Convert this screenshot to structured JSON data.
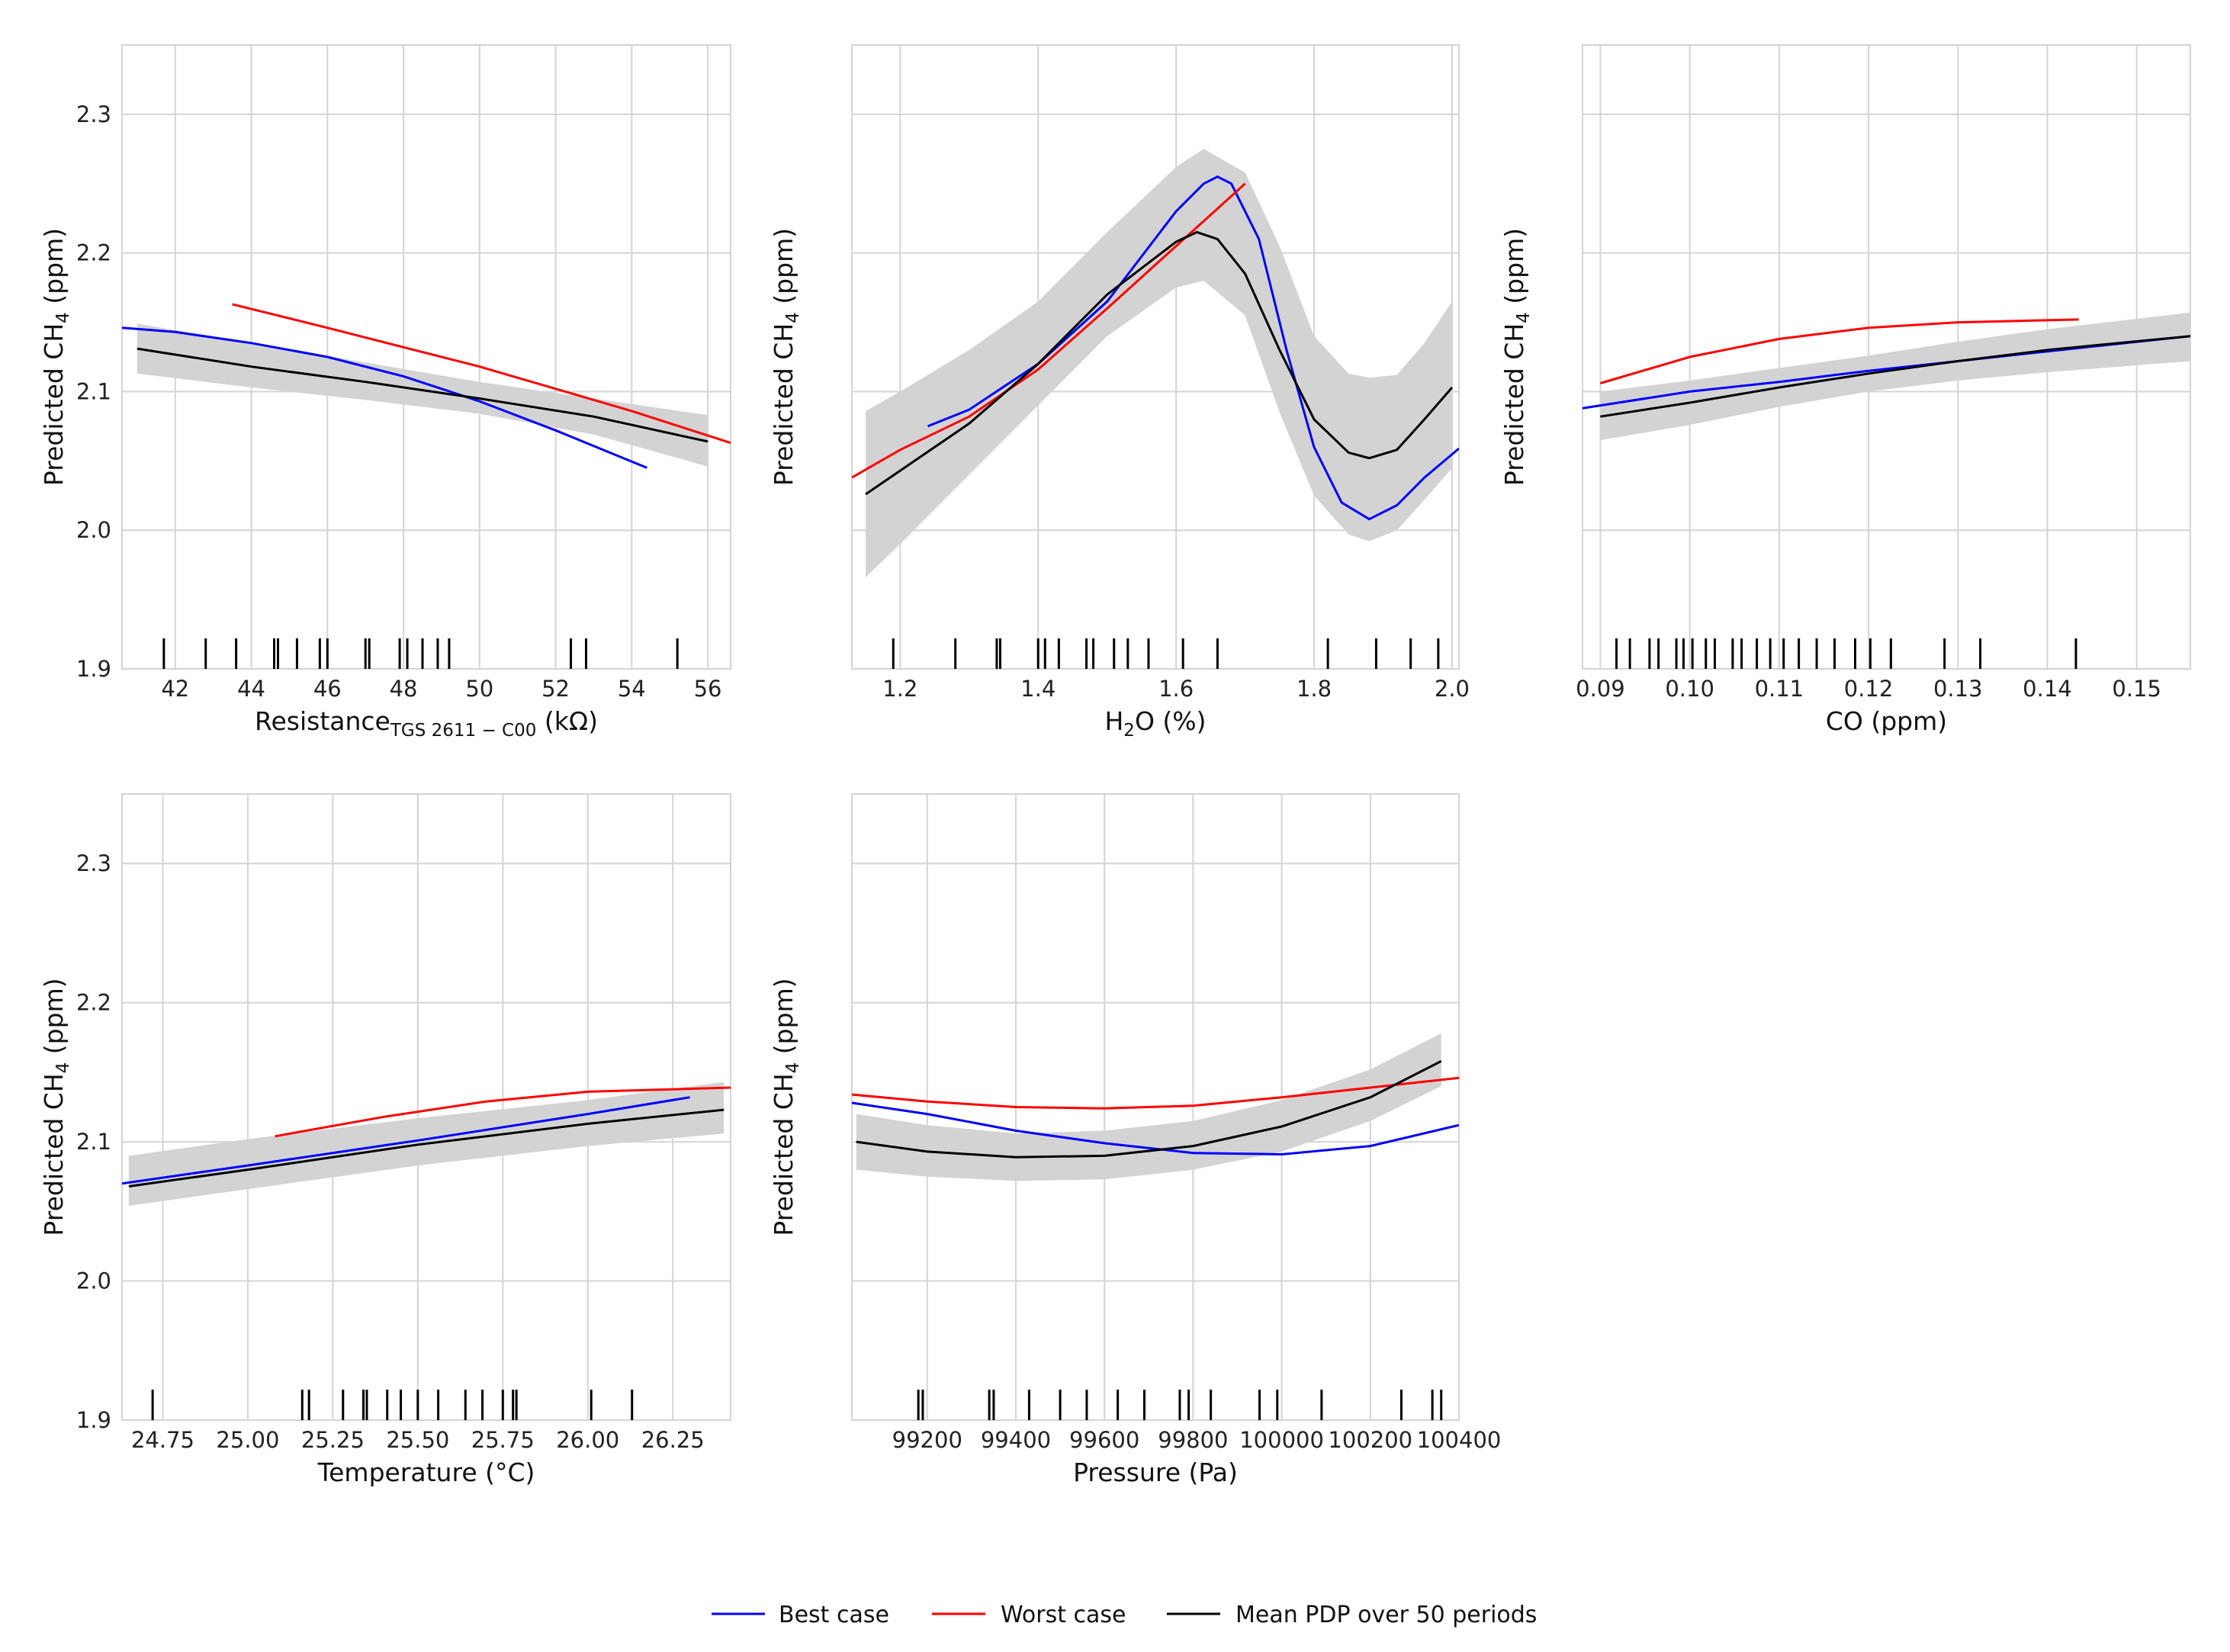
{
  "chart_data": [
    {
      "type": "line",
      "xlabel": "Resistance",
      "xlabel_sub": "TGS 2611 − C00",
      "xlabel_unit": "(kΩ)",
      "ylabel": "Predicted CH",
      "ylabel_sub": "4",
      "ylabel_unit": "(ppm)",
      "xlim": [
        40.6,
        56.6
      ],
      "ylim": [
        1.9,
        2.35
      ],
      "xticks": [
        42,
        44,
        46,
        48,
        50,
        52,
        54,
        56
      ],
      "xtick_labels": [
        "42",
        "44",
        "46",
        "48",
        "50",
        "52",
        "54",
        "56"
      ],
      "yticks": [
        1.9,
        2.0,
        2.1,
        2.2,
        2.3
      ],
      "ytick_labels": [
        "1.9",
        "2.0",
        "2.1",
        "2.2",
        "2.3"
      ],
      "show_ytick_labels": true,
      "rug": [
        41.7,
        42.8,
        43.6,
        44.6,
        44.7,
        45.2,
        45.8,
        46.0,
        47.0,
        47.1,
        47.9,
        48.1,
        48.5,
        48.9,
        49.2,
        52.4,
        52.8,
        55.2
      ],
      "series": [
        {
          "name": "Best case",
          "x": [
            40.6,
            42,
            44,
            46,
            48,
            50,
            52,
            54.4
          ],
          "y": [
            2.146,
            2.143,
            2.135,
            2.125,
            2.111,
            2.093,
            2.072,
            2.045
          ]
        },
        {
          "name": "Worst case",
          "x": [
            43.5,
            46,
            48,
            50,
            52,
            54,
            56.6
          ],
          "y": [
            2.163,
            2.146,
            2.132,
            2.118,
            2.102,
            2.086,
            2.063
          ]
        },
        {
          "name": "Mean PDP over 50 periods",
          "x": [
            41.0,
            44,
            47,
            50,
            53,
            56.0
          ],
          "y": [
            2.131,
            2.118,
            2.107,
            2.095,
            2.082,
            2.064
          ]
        }
      ],
      "band": {
        "x": [
          41.0,
          44,
          47,
          50,
          53,
          56.0
        ],
        "lower": [
          2.113,
          2.103,
          2.094,
          2.084,
          2.069,
          2.046
        ],
        "upper": [
          2.149,
          2.135,
          2.121,
          2.107,
          2.095,
          2.083
        ]
      }
    },
    {
      "type": "line",
      "xlabel": "H",
      "xlabel_sub": "2",
      "xlabel_unit": "O (%)",
      "ylabel": "Predicted CH",
      "ylabel_sub": "4",
      "ylabel_unit": "(ppm)",
      "xlim": [
        1.13,
        2.01
      ],
      "ylim": [
        1.9,
        2.35
      ],
      "xticks": [
        1.2,
        1.4,
        1.6,
        1.8,
        2.0
      ],
      "xtick_labels": [
        "1.2",
        "1.4",
        "1.6",
        "1.8",
        "2.0"
      ],
      "yticks": [
        1.9,
        2.0,
        2.1,
        2.2,
        2.3
      ],
      "ytick_labels": [
        "1.9",
        "2.0",
        "2.1",
        "2.2",
        "2.3"
      ],
      "show_ytick_labels": false,
      "rug": [
        1.19,
        1.28,
        1.34,
        1.345,
        1.4,
        1.41,
        1.43,
        1.47,
        1.48,
        1.51,
        1.53,
        1.56,
        1.61,
        1.66,
        1.82,
        1.89,
        1.94,
        1.98
      ],
      "series": [
        {
          "name": "Best case",
          "x": [
            1.24,
            1.3,
            1.4,
            1.5,
            1.6,
            1.64,
            1.66,
            1.68,
            1.72,
            1.76,
            1.8,
            1.84,
            1.88,
            1.92,
            1.96,
            2.01
          ],
          "y": [
            2.075,
            2.087,
            2.12,
            2.165,
            2.23,
            2.25,
            2.255,
            2.25,
            2.21,
            2.13,
            2.06,
            2.02,
            2.008,
            2.018,
            2.038,
            2.059
          ]
        },
        {
          "name": "Worst case",
          "x": [
            1.13,
            1.2,
            1.3,
            1.4,
            1.5,
            1.6,
            1.7
          ],
          "y": [
            2.038,
            2.058,
            2.082,
            2.116,
            2.16,
            2.205,
            2.25
          ]
        },
        {
          "name": "Mean PDP over 50 periods",
          "x": [
            1.15,
            1.2,
            1.3,
            1.4,
            1.5,
            1.6,
            1.63,
            1.66,
            1.7,
            1.75,
            1.8,
            1.85,
            1.88,
            1.92,
            1.96,
            2.0
          ],
          "y": [
            2.026,
            2.043,
            2.077,
            2.12,
            2.17,
            2.208,
            2.215,
            2.21,
            2.185,
            2.13,
            2.08,
            2.056,
            2.052,
            2.058,
            2.08,
            2.103
          ]
        }
      ],
      "band": {
        "x": [
          1.15,
          1.2,
          1.3,
          1.4,
          1.5,
          1.6,
          1.64,
          1.7,
          1.75,
          1.8,
          1.85,
          1.88,
          1.92,
          1.96,
          2.0
        ],
        "lower": [
          1.966,
          1.99,
          2.04,
          2.09,
          2.14,
          2.175,
          2.18,
          2.155,
          2.085,
          2.025,
          1.997,
          1.992,
          2.0,
          2.022,
          2.045
        ],
        "upper": [
          2.086,
          2.1,
          2.13,
          2.165,
          2.215,
          2.262,
          2.275,
          2.258,
          2.205,
          2.14,
          2.113,
          2.11,
          2.112,
          2.135,
          2.165
        ]
      }
    },
    {
      "type": "line",
      "xlabel": "CO (ppm)",
      "xlabel_sub": "",
      "xlabel_unit": "",
      "ylabel": "Predicted CH",
      "ylabel_sub": "4",
      "ylabel_unit": "(ppm)",
      "xlim": [
        0.088,
        0.156
      ],
      "ylim": [
        1.9,
        2.35
      ],
      "xticks": [
        0.09,
        0.1,
        0.11,
        0.12,
        0.13,
        0.14,
        0.15
      ],
      "xtick_labels": [
        "0.09",
        "0.10",
        "0.11",
        "0.12",
        "0.13",
        "0.14",
        "0.15"
      ],
      "yticks": [
        1.9,
        2.0,
        2.1,
        2.2,
        2.3
      ],
      "ytick_labels": [
        "1.9",
        "2.0",
        "2.1",
        "2.2",
        "2.3"
      ],
      "show_ytick_labels": false,
      "rug": [
        0.0918,
        0.0933,
        0.0955,
        0.0965,
        0.0985,
        0.0993,
        0.1003,
        0.1018,
        0.1028,
        0.1048,
        0.1058,
        0.1075,
        0.109,
        0.1105,
        0.1122,
        0.1142,
        0.1162,
        0.1185,
        0.1202,
        0.1225,
        0.1285,
        0.1325,
        0.1432
      ],
      "series": [
        {
          "name": "Best case",
          "x": [
            0.088,
            0.1,
            0.11,
            0.12,
            0.13,
            0.14,
            0.156
          ],
          "y": [
            2.088,
            2.1,
            2.107,
            2.115,
            2.122,
            2.129,
            2.14
          ]
        },
        {
          "name": "Worst case",
          "x": [
            0.09,
            0.1,
            0.11,
            0.12,
            0.13,
            0.1435
          ],
          "y": [
            2.106,
            2.125,
            2.138,
            2.146,
            2.15,
            2.152
          ]
        },
        {
          "name": "Mean PDP over 50 periods",
          "x": [
            0.09,
            0.1,
            0.11,
            0.12,
            0.13,
            0.14,
            0.156
          ],
          "y": [
            2.082,
            2.092,
            2.103,
            2.113,
            2.122,
            2.13,
            2.14
          ]
        }
      ],
      "band": {
        "x": [
          0.09,
          0.1,
          0.11,
          0.12,
          0.13,
          0.14,
          0.156
        ],
        "lower": [
          2.065,
          2.076,
          2.089,
          2.1,
          2.108,
          2.114,
          2.122
        ],
        "upper": [
          2.1,
          2.108,
          2.117,
          2.126,
          2.136,
          2.145,
          2.157
        ]
      }
    },
    {
      "type": "line",
      "xlabel": "Temperature (",
      "xlabel_sub": "",
      "xlabel_unit": "°C)",
      "ylabel": "Predicted CH",
      "ylabel_sub": "4",
      "ylabel_unit": "(ppm)",
      "xlim": [
        24.63,
        26.42
      ],
      "ylim": [
        1.9,
        2.35
      ],
      "xticks": [
        24.75,
        25.0,
        25.25,
        25.5,
        25.75,
        26.0,
        26.25
      ],
      "xtick_labels": [
        "24.75",
        "25.00",
        "25.25",
        "25.50",
        "25.75",
        "26.00",
        "26.25"
      ],
      "yticks": [
        1.9,
        2.0,
        2.1,
        2.2,
        2.3
      ],
      "ytick_labels": [
        "1.9",
        "2.0",
        "2.1",
        "2.2",
        "2.3"
      ],
      "show_ytick_labels": true,
      "rug": [
        24.72,
        25.16,
        25.18,
        25.28,
        25.34,
        25.35,
        25.41,
        25.45,
        25.5,
        25.56,
        25.64,
        25.69,
        25.75,
        25.78,
        25.79,
        26.01,
        26.13
      ],
      "series": [
        {
          "name": "Best case",
          "x": [
            24.63,
            25.0,
            25.5,
            26.0,
            26.3
          ],
          "y": [
            2.07,
            2.083,
            2.101,
            2.12,
            2.132
          ]
        },
        {
          "name": "Worst case",
          "x": [
            25.08,
            25.4,
            25.7,
            26.0,
            26.42
          ],
          "y": [
            2.104,
            2.118,
            2.129,
            2.136,
            2.139
          ]
        },
        {
          "name": "Mean PDP over 50 periods",
          "x": [
            24.65,
            25.0,
            25.5,
            26.0,
            26.4
          ],
          "y": [
            2.068,
            2.08,
            2.098,
            2.113,
            2.123
          ]
        }
      ],
      "band": {
        "x": [
          24.65,
          25.0,
          25.5,
          26.0,
          26.4
        ],
        "lower": [
          2.054,
          2.066,
          2.083,
          2.097,
          2.106
        ],
        "upper": [
          2.09,
          2.102,
          2.117,
          2.13,
          2.143
        ]
      }
    },
    {
      "type": "line",
      "xlabel": "Pressure (Pa)",
      "xlabel_sub": "",
      "xlabel_unit": "",
      "ylabel": "Predicted CH",
      "ylabel_sub": "4",
      "ylabel_unit": "(ppm)",
      "xlim": [
        99030,
        100400
      ],
      "ylim": [
        1.9,
        2.35
      ],
      "xticks": [
        99200,
        99400,
        99600,
        99800,
        100000,
        100200,
        100400
      ],
      "xtick_labels": [
        "99200",
        "99400",
        "99600",
        "99800",
        "100000",
        "100200",
        "100400"
      ],
      "yticks": [
        1.9,
        2.0,
        2.1,
        2.2,
        2.3
      ],
      "ytick_labels": [
        "1.9",
        "2.0",
        "2.1",
        "2.2",
        "2.3"
      ],
      "show_ytick_labels": false,
      "rug": [
        99180,
        99190,
        99340,
        99350,
        99430,
        99500,
        99560,
        99630,
        99690,
        99770,
        99790,
        99840,
        99950,
        99990,
        100090,
        100270,
        100340,
        100360
      ],
      "series": [
        {
          "name": "Best case",
          "x": [
            99030,
            99200,
            99400,
            99600,
            99800,
            100000,
            100200,
            100400
          ],
          "y": [
            2.128,
            2.12,
            2.108,
            2.099,
            2.092,
            2.091,
            2.097,
            2.112
          ]
        },
        {
          "name": "Worst case",
          "x": [
            99030,
            99200,
            99400,
            99600,
            99800,
            100000,
            100200,
            100400
          ],
          "y": [
            2.134,
            2.129,
            2.125,
            2.124,
            2.126,
            2.132,
            2.139,
            2.146
          ]
        },
        {
          "name": "Mean PDP over 50 periods",
          "x": [
            99040,
            99200,
            99400,
            99600,
            99800,
            100000,
            100200,
            100360
          ],
          "y": [
            2.1,
            2.093,
            2.089,
            2.09,
            2.097,
            2.111,
            2.132,
            2.158
          ]
        }
      ],
      "band": {
        "x": [
          99040,
          99200,
          99400,
          99600,
          99800,
          100000,
          100200,
          100360
        ],
        "lower": [
          2.08,
          2.075,
          2.072,
          2.073,
          2.08,
          2.093,
          2.115,
          2.14
        ],
        "upper": [
          2.12,
          2.112,
          2.106,
          2.108,
          2.115,
          2.13,
          2.152,
          2.178
        ]
      }
    }
  ],
  "legend": [
    {
      "label": "Best case",
      "color": "#0000ff"
    },
    {
      "label": "Worst case",
      "color": "#ff0000"
    },
    {
      "label": "Mean PDP over 50 periods",
      "color": "#000000"
    }
  ]
}
